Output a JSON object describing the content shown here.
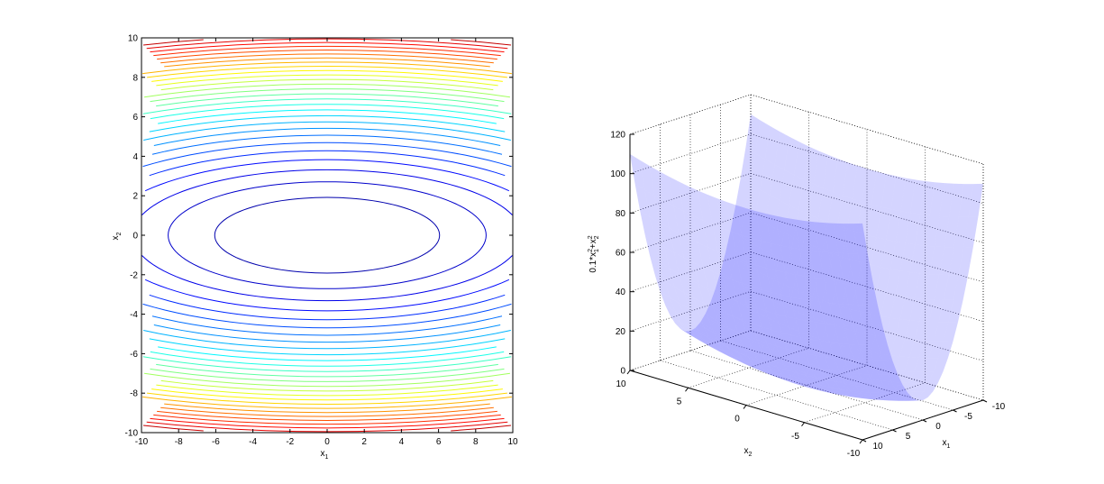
{
  "chart_data": [
    {
      "type": "contour",
      "function": "0.1*x1^2 + x2^2",
      "xlabel": "x",
      "xlabel_sub": "1",
      "ylabel": "x",
      "ylabel_sub": "2",
      "xlim": [
        -10,
        10
      ],
      "ylim": [
        -10,
        10
      ],
      "xticks": [
        "-10",
        "-8",
        "-6",
        "-4",
        "-2",
        "0",
        "2",
        "4",
        "6",
        "8",
        "10"
      ],
      "yticks": [
        "-10",
        "-8",
        "-6",
        "-4",
        "-2",
        "0",
        "2",
        "4",
        "6",
        "8",
        "10"
      ],
      "levels_min": 0,
      "levels_max": 110,
      "levels_count": 31,
      "colormap": [
        "#00008f",
        "#0000ff",
        "#0080ff",
        "#00ffff",
        "#80ff80",
        "#ffff00",
        "#ff8000",
        "#ff0000",
        "#800000"
      ],
      "grid": false
    },
    {
      "type": "surface",
      "function": "0.1*x1^2 + x2^2",
      "xlabel": "x",
      "xlabel_sub": "1",
      "ylabel": "x",
      "ylabel_sub": "2",
      "zlabel_parts": [
        "0.1*x",
        "2",
        "1",
        "+x",
        "2",
        "2"
      ],
      "xlim": [
        -10,
        10
      ],
      "ylim": [
        -10,
        10
      ],
      "zlim": [
        0,
        120
      ],
      "x1_ticks": [
        "-10",
        "-5",
        "0",
        "5",
        "10"
      ],
      "x2_ticks": [
        "10",
        "5",
        "0",
        "-5",
        "-10"
      ],
      "zticks": [
        "0",
        "20",
        "40",
        "60",
        "80",
        "100",
        "120"
      ],
      "face_color": "#0000ff",
      "face_alpha": 0.5,
      "grid": true
    }
  ]
}
